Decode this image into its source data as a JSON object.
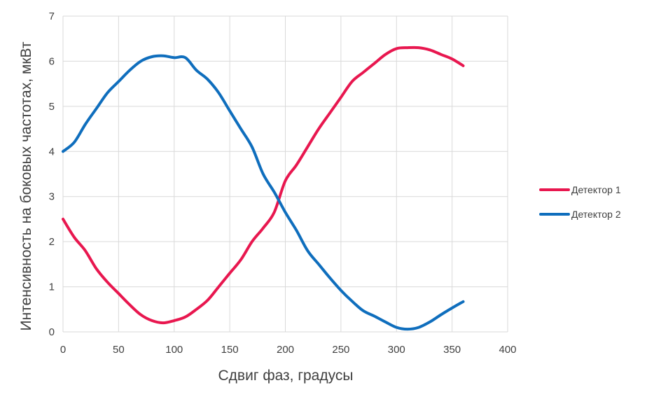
{
  "chart_data": {
    "type": "line",
    "title": "",
    "xlabel": "Сдвиг фаз, градусы",
    "ylabel": "Интенсивность на боковых частотах, мкВт",
    "xlim": [
      0,
      400
    ],
    "ylim": [
      0,
      7
    ],
    "x_ticks": [
      "0",
      "50",
      "100",
      "150",
      "200",
      "250",
      "300",
      "350",
      "400"
    ],
    "y_ticks": [
      "0",
      "1",
      "2",
      "3",
      "4",
      "5",
      "6",
      "7"
    ],
    "grid": true,
    "legend_position": "right",
    "series": [
      {
        "name": "Детектор 1",
        "color": "#e8174f",
        "x": [
          0,
          10,
          20,
          30,
          40,
          50,
          60,
          70,
          80,
          90,
          100,
          110,
          120,
          130,
          140,
          150,
          160,
          170,
          180,
          190,
          200,
          210,
          220,
          230,
          240,
          250,
          260,
          270,
          280,
          290,
          300,
          310,
          320,
          330,
          340,
          350,
          360
        ],
        "y": [
          2.5,
          2.1,
          1.8,
          1.4,
          1.1,
          0.85,
          0.6,
          0.38,
          0.25,
          0.2,
          0.25,
          0.33,
          0.5,
          0.7,
          1.0,
          1.3,
          1.6,
          2.0,
          2.3,
          2.65,
          3.35,
          3.7,
          4.1,
          4.5,
          4.85,
          5.2,
          5.55,
          5.75,
          5.95,
          6.15,
          6.28,
          6.3,
          6.3,
          6.25,
          6.15,
          6.05,
          5.9
        ]
      },
      {
        "name": "Детектор 2",
        "color": "#0f6ebd",
        "x": [
          0,
          10,
          20,
          30,
          40,
          50,
          60,
          70,
          80,
          90,
          100,
          110,
          120,
          130,
          140,
          150,
          160,
          170,
          180,
          190,
          200,
          210,
          220,
          230,
          240,
          250,
          260,
          270,
          280,
          290,
          300,
          310,
          320,
          330,
          340,
          350,
          360
        ],
        "y": [
          4.0,
          4.2,
          4.6,
          4.95,
          5.3,
          5.55,
          5.8,
          6.0,
          6.1,
          6.12,
          6.08,
          6.08,
          5.8,
          5.6,
          5.3,
          4.9,
          4.5,
          4.1,
          3.5,
          3.1,
          2.65,
          2.25,
          1.8,
          1.5,
          1.2,
          0.92,
          0.68,
          0.47,
          0.35,
          0.22,
          0.1,
          0.06,
          0.1,
          0.22,
          0.38,
          0.53,
          0.67
        ]
      }
    ]
  }
}
